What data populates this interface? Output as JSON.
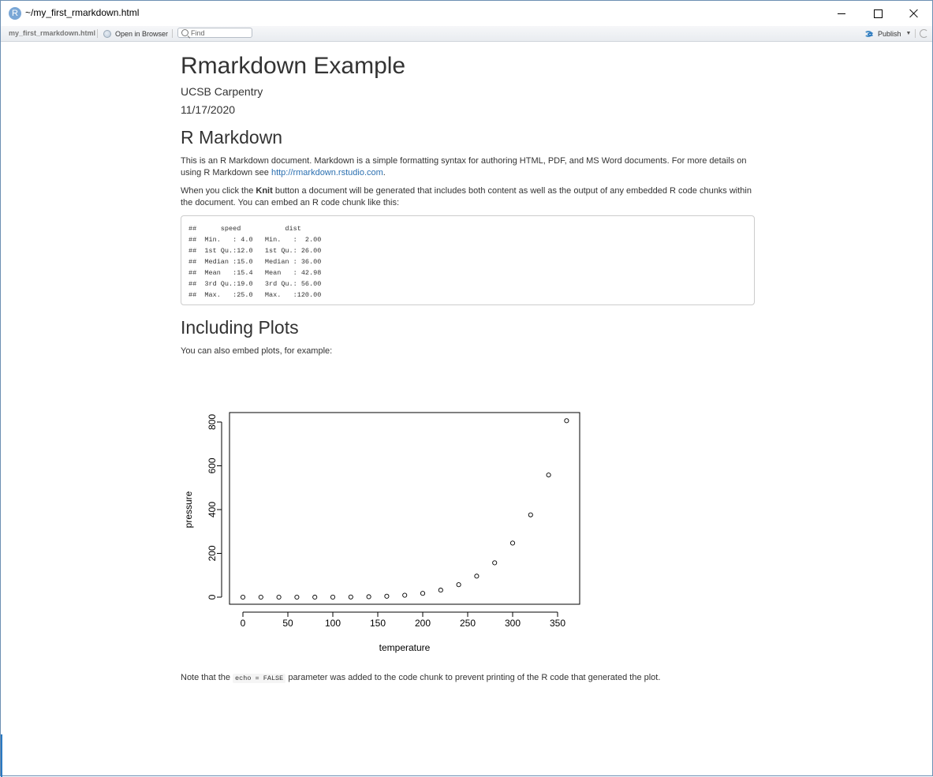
{
  "window": {
    "title": "~/my_first_rmarkdown.html",
    "app_icon_letter": "R"
  },
  "toolbar": {
    "file_name": "my_first_rmarkdown.html",
    "open_in_browser": "Open in Browser",
    "find_placeholder": "Find",
    "publish": "Publish"
  },
  "document": {
    "title": "Rmarkdown Example",
    "author": "UCSB Carpentry",
    "date": "11/17/2020",
    "section1": {
      "heading": "R Markdown",
      "p1_text": "This is an R Markdown document. Markdown is a simple formatting syntax for authoring HTML, PDF, and MS Word documents. For more details on using R Markdown see ",
      "p1_link": "http://rmarkdown.rstudio.com",
      "p1_end": ".",
      "p2_before": "When you click the ",
      "p2_bold": "Knit",
      "p2_after": " button a document will be generated that includes both content as well as the output of any embedded R code chunks within the document. You can embed an R code chunk like this:",
      "code_output": "##      speed           dist       \n##  Min.   : 4.0   Min.   :  2.00  \n##  1st Qu.:12.0   1st Qu.: 26.00  \n##  Median :15.0   Median : 36.00  \n##  Mean   :15.4   Mean   : 42.98  \n##  3rd Qu.:19.0   3rd Qu.: 56.00  \n##  Max.   :25.0   Max.   :120.00  "
    },
    "section2": {
      "heading": "Including Plots",
      "p3": "You can also embed plots, for example:",
      "note_before": "Note that the ",
      "note_code": "echo = FALSE",
      "note_after": " parameter was added to the code chunk to prevent printing of the R code that generated the plot."
    }
  },
  "chart_data": {
    "type": "scatter",
    "title": "",
    "xlabel": "temperature",
    "ylabel": "pressure",
    "x": [
      0,
      20,
      40,
      60,
      80,
      100,
      120,
      140,
      160,
      180,
      200,
      220,
      240,
      260,
      280,
      300,
      320,
      340,
      360
    ],
    "y": [
      0.0002,
      0.0012,
      0.006,
      0.03,
      0.09,
      0.27,
      0.75,
      1.85,
      4.2,
      8.8,
      17.3,
      32.1,
      57.0,
      96.0,
      157.0,
      247.0,
      376.0,
      558.0,
      806.0
    ],
    "xlim": [
      0,
      360
    ],
    "ylim": [
      0,
      806
    ],
    "xticks": [
      "0",
      "50",
      "100",
      "150",
      "200",
      "250",
      "300",
      "350"
    ],
    "yticks": [
      "0",
      "200",
      "400",
      "600",
      "800"
    ],
    "marker": "open-circle",
    "grid": false,
    "legend": "none"
  }
}
